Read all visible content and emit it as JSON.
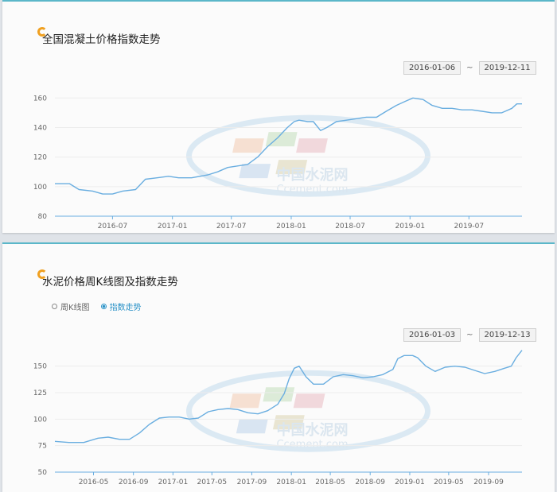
{
  "panel1": {
    "title": "全国混凝土价格指数走势",
    "start_date": "2016-01-06",
    "tilde": "~",
    "end_date": "2019-12-11"
  },
  "panel2": {
    "title": "水泥价格周K线图及指数走势",
    "radio_options": [
      "周K线图",
      "指数走势"
    ],
    "selected_option": "指数走势",
    "start_date": "2016-01-03",
    "tilde": "~",
    "end_date": "2019-12-13"
  },
  "watermark": {
    "text_cn": "中国水泥网",
    "text_en": "Ccement.com"
  },
  "colors": {
    "line": "#6aaee0",
    "accent": "#2a92c7",
    "title_bar": "#5bb7c9"
  },
  "chart_data": [
    {
      "type": "line",
      "title": "全国混凝土价格指数走势",
      "xlabel": "",
      "ylabel": "",
      "x_range": [
        "2016-01-06",
        "2019-12-11"
      ],
      "ylim": [
        80,
        165
      ],
      "yticks": [
        80,
        100,
        120,
        140,
        160
      ],
      "xtick_labels": [
        "2016-07",
        "2017-01",
        "2017-07",
        "2018-01",
        "2018-07",
        "2019-01",
        "2019-07"
      ],
      "grid": "horizontal",
      "series": [
        {
          "x": [
            "2016-01-06",
            "2016-02-20",
            "2016-03-20",
            "2016-05-01",
            "2016-06-01",
            "2016-07-01",
            "2016-08-01",
            "2016-09-10",
            "2016-10-10",
            "2016-11-15",
            "2016-12-20",
            "2017-01-20",
            "2017-03-01",
            "2017-04-20",
            "2017-05-20",
            "2017-06-20",
            "2017-07-20",
            "2017-08-20",
            "2017-09-20",
            "2017-10-20",
            "2017-11-20",
            "2017-12-20",
            "2018-01-10",
            "2018-01-25",
            "2018-02-20",
            "2018-03-10",
            "2018-04-01",
            "2018-04-20",
            "2018-05-20",
            "2018-06-20",
            "2018-07-20",
            "2018-08-20",
            "2018-09-20",
            "2018-10-20",
            "2018-11-20",
            "2018-12-20",
            "2019-01-10",
            "2019-02-10",
            "2019-03-10",
            "2019-04-10",
            "2019-05-10",
            "2019-06-10",
            "2019-07-10",
            "2019-08-10",
            "2019-09-10",
            "2019-10-10",
            "2019-11-10",
            "2019-11-25",
            "2019-12-11"
          ],
          "values": [
            102,
            102,
            98,
            97,
            95,
            95,
            97,
            98,
            105,
            106,
            107,
            106,
            106,
            108,
            110,
            113,
            114,
            115,
            120,
            127,
            133,
            140,
            144,
            145,
            144,
            144,
            138,
            140,
            144,
            145,
            146,
            147,
            147,
            151,
            155,
            158,
            160,
            159,
            155,
            153,
            153,
            152,
            152,
            151,
            150,
            150,
            153,
            156,
            156
          ]
        }
      ]
    },
    {
      "type": "line",
      "title": "水泥价格周K线图及指数走势",
      "xlabel": "",
      "ylabel": "",
      "x_range": [
        "2016-01-03",
        "2019-12-13"
      ],
      "ylim": [
        50,
        170
      ],
      "yticks": [
        50,
        75,
        100,
        125,
        150
      ],
      "xtick_labels": [
        "2016-05",
        "2016-09",
        "2017-01",
        "2017-05",
        "2017-09",
        "2018-01",
        "2018-05",
        "2018-09",
        "2019-01",
        "2019-05",
        "2019-09"
      ],
      "grid": "horizontal",
      "series": [
        {
          "x": [
            "2016-01-03",
            "2016-02-15",
            "2016-04-01",
            "2016-05-15",
            "2016-06-15",
            "2016-07-20",
            "2016-08-20",
            "2016-09-20",
            "2016-10-20",
            "2016-11-20",
            "2016-12-20",
            "2017-01-20",
            "2017-02-20",
            "2017-03-20",
            "2017-04-20",
            "2017-05-20",
            "2017-06-20",
            "2017-07-20",
            "2017-08-20",
            "2017-09-20",
            "2017-10-20",
            "2017-11-20",
            "2017-12-10",
            "2017-12-25",
            "2018-01-10",
            "2018-01-25",
            "2018-02-15",
            "2018-03-10",
            "2018-04-10",
            "2018-05-10",
            "2018-06-10",
            "2018-07-10",
            "2018-08-10",
            "2018-09-10",
            "2018-10-10",
            "2018-11-10",
            "2018-11-25",
            "2018-12-15",
            "2019-01-10",
            "2019-01-25",
            "2019-02-20",
            "2019-03-20",
            "2019-04-20",
            "2019-05-20",
            "2019-06-20",
            "2019-07-20",
            "2019-08-20",
            "2019-09-20",
            "2019-10-20",
            "2019-11-10",
            "2019-11-25",
            "2019-12-13"
          ],
          "values": [
            79,
            78,
            78,
            82,
            83,
            81,
            81,
            87,
            95,
            101,
            102,
            102,
            100,
            101,
            107,
            109,
            110,
            109,
            106,
            105,
            108,
            114,
            124,
            138,
            148,
            150,
            140,
            133,
            133,
            140,
            142,
            141,
            139,
            140,
            142,
            147,
            157,
            160,
            160,
            158,
            150,
            145,
            149,
            150,
            149,
            146,
            143,
            145,
            148,
            150,
            158,
            165
          ]
        }
      ]
    }
  ]
}
